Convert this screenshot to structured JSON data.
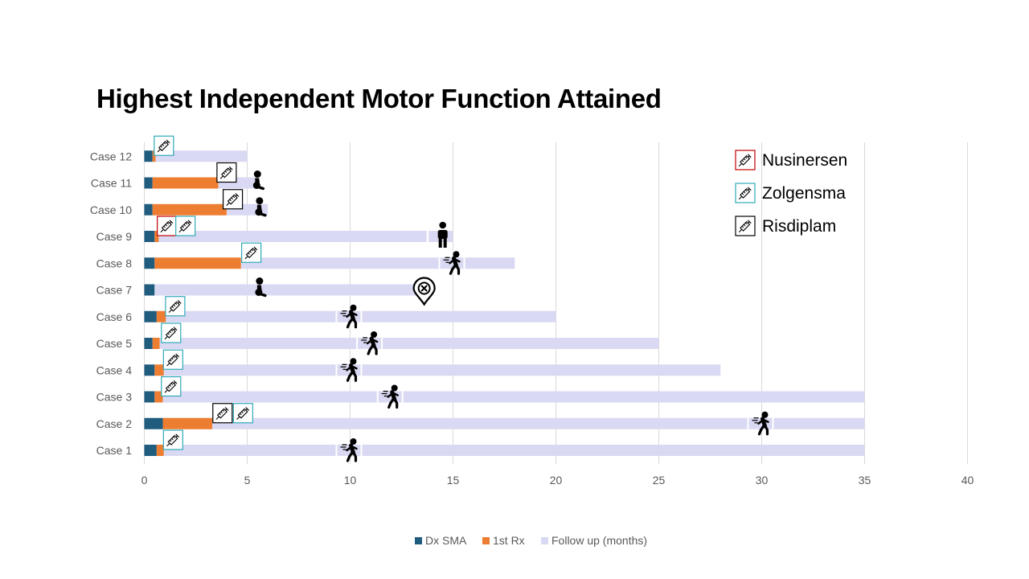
{
  "chart_data": {
    "type": "bar",
    "orientation": "horizontal",
    "stacked": true,
    "title": "Highest Independent Motor Function Attained",
    "categories": [
      "Case 1",
      "Case 2",
      "Case 3",
      "Case 4",
      "Case 5",
      "Case 6",
      "Case 7",
      "Case 8",
      "Case 9",
      "Case 10",
      "Case 11",
      "Case 12"
    ],
    "series": [
      {
        "name": "Dx SMA",
        "color": "#1f5c7e",
        "values": [
          0.6,
          0.9,
          0.5,
          0.5,
          0.4,
          0.6,
          0.5,
          0.5,
          0.5,
          0.4,
          0.4,
          0.4
        ]
      },
      {
        "name": "1st Rx",
        "color": "#ed7d31",
        "values": [
          0.35,
          2.4,
          0.4,
          0.45,
          0.35,
          0.45,
          0,
          4.2,
          0.2,
          3.6,
          3.2,
          0.15
        ]
      },
      {
        "name": "Follow up (months)",
        "color": "#d9d9f3",
        "values": [
          34.05,
          31.7,
          34.1,
          27.05,
          24.25,
          18.95,
          13.0,
          13.3,
          14.3,
          2.0,
          1.9,
          4.45
        ]
      }
    ],
    "xlim": [
      0,
      40
    ],
    "xticks": [
      0,
      5,
      10,
      15,
      20,
      25,
      30,
      35,
      40
    ],
    "grid": "vertical",
    "legend_position": "bottom",
    "treatment_legend": [
      {
        "label": "Nusinersen",
        "icon": "syringe-icon",
        "border": "#c00000"
      },
      {
        "label": "Zolgensma",
        "icon": "syringe-icon",
        "border": "#2fa9b8"
      },
      {
        "label": "Risdiplam",
        "icon": "syringe-icon",
        "border": "#000000"
      }
    ],
    "annotations": [
      {
        "case": 1,
        "kind": "walking",
        "x": 10
      },
      {
        "case": 2,
        "kind": "walking",
        "x": 30
      },
      {
        "case": 3,
        "kind": "walking",
        "x": 12
      },
      {
        "case": 4,
        "kind": "walking",
        "x": 10
      },
      {
        "case": 5,
        "kind": "walking",
        "x": 11
      },
      {
        "case": 6,
        "kind": "walking",
        "x": 10
      },
      {
        "case": 7,
        "kind": "sitting",
        "x": 5.6
      },
      {
        "case": 7,
        "kind": "death",
        "x": 13.6
      },
      {
        "case": 8,
        "kind": "walking",
        "x": 15
      },
      {
        "case": 9,
        "kind": "standing",
        "x": 14.5
      },
      {
        "case": 10,
        "kind": "sitting",
        "x": 5.6
      },
      {
        "case": 11,
        "kind": "sitting",
        "x": 5.5
      }
    ],
    "treatments": [
      {
        "case": 1,
        "drug": "Zolgensma",
        "x": 1.4
      },
      {
        "case": 2,
        "drug": "Risdiplam",
        "x": 3.8
      },
      {
        "case": 2,
        "drug": "Zolgensma",
        "x": 4.8
      },
      {
        "case": 3,
        "drug": "Zolgensma",
        "x": 1.3
      },
      {
        "case": 4,
        "drug": "Zolgensma",
        "x": 1.4
      },
      {
        "case": 5,
        "drug": "Zolgensma",
        "x": 1.3
      },
      {
        "case": 6,
        "drug": "Zolgensma",
        "x": 1.5
      },
      {
        "case": 8,
        "drug": "Zolgensma",
        "x": 5.2
      },
      {
        "case": 9,
        "drug": "Nusinersen",
        "x": 1.1
      },
      {
        "case": 9,
        "drug": "Zolgensma",
        "x": 2.0
      },
      {
        "case": 10,
        "drug": "Risdiplam",
        "x": 4.3
      },
      {
        "case": 11,
        "drug": "Risdiplam",
        "x": 4.0
      },
      {
        "case": 12,
        "drug": "Zolgensma",
        "x": 0.95
      }
    ]
  }
}
